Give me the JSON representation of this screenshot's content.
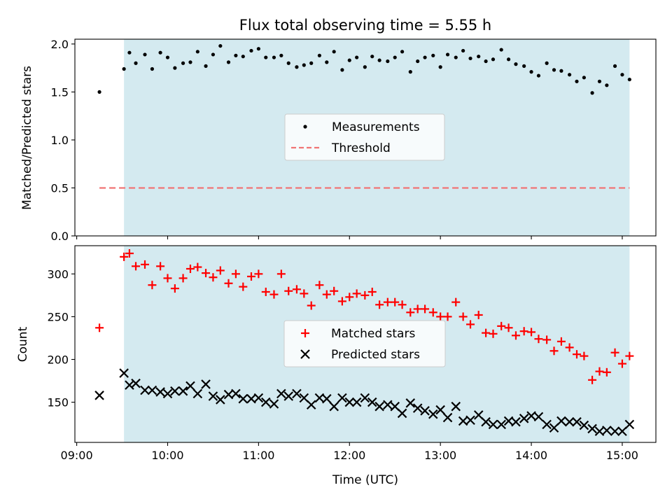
{
  "chart_data": {
    "type": "scatter",
    "title": "Flux total observing time = 5.55 h",
    "xlabel": "Time (UTC)",
    "x_tick_labels": [
      "09:00",
      "10:00",
      "11:00",
      "12:00",
      "13:00",
      "14:00",
      "15:00"
    ],
    "x_tick_values": [
      9.0,
      10.0,
      11.0,
      12.0,
      13.0,
      14.0,
      15.0
    ],
    "xlim": [
      8.98,
      15.37
    ],
    "observing_window": [
      9.52,
      15.08
    ],
    "window_color": "#d4eaf0",
    "panels": [
      {
        "ylabel": "Matched/Predicted stars",
        "ylim": [
          0,
          2.05
        ],
        "y_ticks": [
          0.0,
          0.5,
          1.0,
          1.5,
          2.0
        ],
        "y_tick_labels": [
          "0.0",
          "0.5",
          "1.0",
          "1.5",
          "2.0"
        ],
        "legend": [
          "Measurements",
          "Threshold"
        ],
        "threshold": {
          "value": 0.5,
          "x_range": [
            9.25,
            15.08
          ],
          "color": "#f07575"
        },
        "series": [
          {
            "name": "Measurements",
            "color": "#000000",
            "x": [
              9.25,
              9.52,
              9.58,
              9.65,
              9.75,
              9.83,
              9.92,
              10.0,
              10.08,
              10.17,
              10.25,
              10.33,
              10.42,
              10.5,
              10.58,
              10.67,
              10.75,
              10.83,
              10.92,
              11.0,
              11.08,
              11.17,
              11.25,
              11.33,
              11.42,
              11.5,
              11.58,
              11.67,
              11.75,
              11.83,
              11.92,
              12.0,
              12.08,
              12.17,
              12.25,
              12.33,
              12.42,
              12.5,
              12.58,
              12.67,
              12.75,
              12.83,
              12.92,
              13.0,
              13.08,
              13.17,
              13.25,
              13.33,
              13.42,
              13.5,
              13.58,
              13.67,
              13.75,
              13.83,
              13.92,
              14.0,
              14.08,
              14.17,
              14.25,
              14.33,
              14.42,
              14.5,
              14.58,
              14.67,
              14.75,
              14.83,
              14.92,
              15.0,
              15.08
            ],
            "y": [
              1.5,
              1.74,
              1.91,
              1.8,
              1.89,
              1.74,
              1.91,
              1.86,
              1.75,
              1.8,
              1.81,
              1.92,
              1.77,
              1.89,
              1.98,
              1.81,
              1.88,
              1.87,
              1.93,
              1.95,
              1.86,
              1.86,
              1.88,
              1.8,
              1.76,
              1.78,
              1.8,
              1.88,
              1.81,
              1.92,
              1.73,
              1.83,
              1.86,
              1.76,
              1.87,
              1.83,
              1.82,
              1.86,
              1.92,
              1.71,
              1.82,
              1.86,
              1.88,
              1.76,
              1.89,
              1.86,
              1.93,
              1.85,
              1.87,
              1.82,
              1.84,
              1.94,
              1.84,
              1.79,
              1.77,
              1.71,
              1.67,
              1.8,
              1.73,
              1.72,
              1.68,
              1.61,
              1.65,
              1.49,
              1.61,
              1.57,
              1.77,
              1.68,
              1.63
            ]
          }
        ]
      },
      {
        "ylabel": "Count",
        "ylim": [
          103,
          333
        ],
        "y_ticks": [
          150,
          200,
          250,
          300
        ],
        "y_tick_labels": [
          "150",
          "200",
          "250",
          "300"
        ],
        "legend": [
          "Matched stars",
          "Predicted stars"
        ],
        "series": [
          {
            "name": "Matched stars",
            "color": "#ff0000",
            "x": [
              9.25,
              9.52,
              9.58,
              9.65,
              9.75,
              9.83,
              9.92,
              10.0,
              10.08,
              10.17,
              10.25,
              10.33,
              10.42,
              10.5,
              10.58,
              10.67,
              10.75,
              10.83,
              10.92,
              11.0,
              11.08,
              11.17,
              11.25,
              11.33,
              11.42,
              11.5,
              11.58,
              11.67,
              11.75,
              11.83,
              11.92,
              12.0,
              12.08,
              12.17,
              12.25,
              12.33,
              12.42,
              12.5,
              12.58,
              12.67,
              12.75,
              12.83,
              12.92,
              13.0,
              13.08,
              13.17,
              13.25,
              13.33,
              13.42,
              13.5,
              13.58,
              13.67,
              13.75,
              13.83,
              13.92,
              14.0,
              14.08,
              14.17,
              14.25,
              14.33,
              14.42,
              14.5,
              14.58,
              14.67,
              14.75,
              14.83,
              14.92,
              15.0,
              15.08
            ],
            "y": [
              237,
              320,
              324,
              309,
              311,
              287,
              309,
              295,
              283,
              295,
              306,
              308,
              301,
              296,
              304,
              289,
              300,
              285,
              297,
              300,
              279,
              276,
              300,
              280,
              282,
              277,
              263,
              287,
              276,
              280,
              268,
              273,
              277,
              275,
              279,
              264,
              267,
              267,
              264,
              255,
              259,
              259,
              255,
              250,
              250,
              267,
              250,
              241,
              252,
              231,
              230,
              239,
              237,
              228,
              233,
              232,
              224,
              223,
              210,
              221,
              214,
              206,
              204,
              176,
              186,
              185,
              208,
              195,
              204
            ]
          },
          {
            "name": "Predicted stars",
            "color": "#000000",
            "x": [
              9.25,
              9.52,
              9.58,
              9.65,
              9.75,
              9.83,
              9.92,
              10.0,
              10.08,
              10.17,
              10.25,
              10.33,
              10.42,
              10.5,
              10.58,
              10.67,
              10.75,
              10.83,
              10.92,
              11.0,
              11.08,
              11.17,
              11.25,
              11.33,
              11.42,
              11.5,
              11.58,
              11.67,
              11.75,
              11.83,
              11.92,
              12.0,
              12.08,
              12.17,
              12.25,
              12.33,
              12.42,
              12.5,
              12.58,
              12.67,
              12.75,
              12.83,
              12.92,
              13.0,
              13.08,
              13.17,
              13.25,
              13.33,
              13.42,
              13.5,
              13.58,
              13.67,
              13.75,
              13.83,
              13.92,
              14.0,
              14.08,
              14.17,
              14.25,
              14.33,
              14.42,
              14.5,
              14.58,
              14.67,
              14.75,
              14.83,
              14.92,
              15.0,
              15.08
            ],
            "y": [
              158,
              184,
              170,
              172,
              164,
              164,
              162,
              160,
              163,
              163,
              169,
              160,
              171,
              157,
              153,
              159,
              160,
              154,
              154,
              155,
              150,
              148,
              160,
              157,
              160,
              155,
              147,
              155,
              154,
              145,
              155,
              150,
              150,
              155,
              150,
              145,
              147,
              145,
              137,
              149,
              143,
              140,
              136,
              141,
              132,
              145,
              128,
              129,
              135,
              127,
              124,
              124,
              128,
              127,
              131,
              134,
              133,
              124,
              120,
              128,
              127,
              127,
              123,
              119,
              116,
              117,
              116,
              116,
              124
            ]
          }
        ]
      }
    ]
  }
}
